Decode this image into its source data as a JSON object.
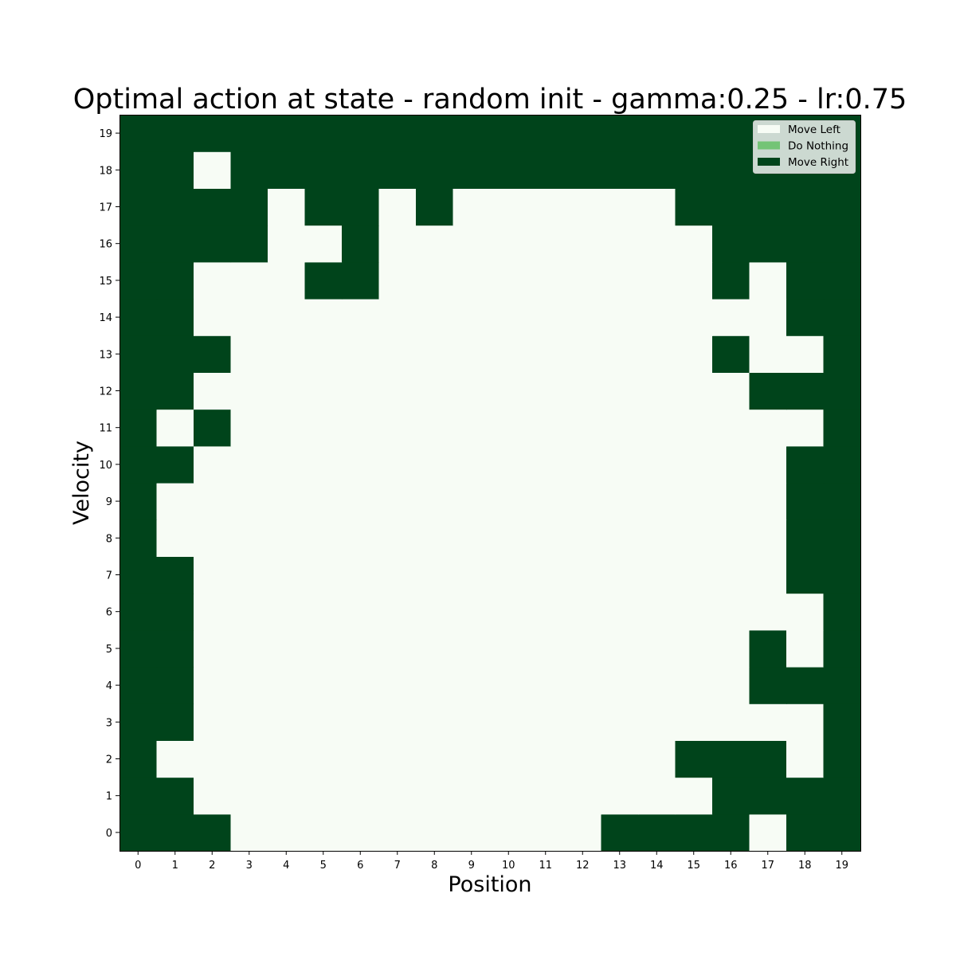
{
  "chart_data": {
    "type": "heatmap",
    "title": "Optimal action at state - random init - gamma:0.25 - lr:0.75",
    "xlabel": "Position",
    "ylabel": "Velocity",
    "x_ticks": [
      "0",
      "1",
      "2",
      "3",
      "4",
      "5",
      "6",
      "7",
      "8",
      "9",
      "10",
      "11",
      "12",
      "13",
      "14",
      "15",
      "16",
      "17",
      "18",
      "19"
    ],
    "y_ticks": [
      "0",
      "1",
      "2",
      "3",
      "4",
      "5",
      "6",
      "7",
      "8",
      "9",
      "10",
      "11",
      "12",
      "13",
      "14",
      "15",
      "16",
      "17",
      "18",
      "19"
    ],
    "grid": false,
    "legend_position": "top-right",
    "legend": [
      {
        "label": "Move Left",
        "value": 0,
        "color": "#f7fcf5"
      },
      {
        "label": "Do Nothing",
        "value": 1,
        "color": "#74c476"
      },
      {
        "label": "Move Right",
        "value": 2,
        "color": "#00441b"
      }
    ],
    "grid_rows_by_velocity": [
      [
        2,
        2,
        2,
        0,
        0,
        0,
        0,
        0,
        0,
        0,
        0,
        0,
        0,
        2,
        2,
        2,
        2,
        0,
        2,
        2
      ],
      [
        2,
        2,
        0,
        0,
        0,
        0,
        0,
        0,
        0,
        0,
        0,
        0,
        0,
        0,
        0,
        0,
        2,
        2,
        2,
        2
      ],
      [
        2,
        0,
        0,
        0,
        0,
        0,
        0,
        0,
        0,
        0,
        0,
        0,
        0,
        0,
        0,
        2,
        2,
        2,
        0,
        2
      ],
      [
        2,
        2,
        0,
        0,
        0,
        0,
        0,
        0,
        0,
        0,
        0,
        0,
        0,
        0,
        0,
        0,
        0,
        0,
        0,
        2
      ],
      [
        2,
        2,
        0,
        0,
        0,
        0,
        0,
        0,
        0,
        0,
        0,
        0,
        0,
        0,
        0,
        0,
        0,
        2,
        2,
        2
      ],
      [
        2,
        2,
        0,
        0,
        0,
        0,
        0,
        0,
        0,
        0,
        0,
        0,
        0,
        0,
        0,
        0,
        0,
        2,
        0,
        2
      ],
      [
        2,
        2,
        0,
        0,
        0,
        0,
        0,
        0,
        0,
        0,
        0,
        0,
        0,
        0,
        0,
        0,
        0,
        0,
        0,
        2
      ],
      [
        2,
        2,
        0,
        0,
        0,
        0,
        0,
        0,
        0,
        0,
        0,
        0,
        0,
        0,
        0,
        0,
        0,
        0,
        2,
        2
      ],
      [
        2,
        0,
        0,
        0,
        0,
        0,
        0,
        0,
        0,
        0,
        0,
        0,
        0,
        0,
        0,
        0,
        0,
        0,
        2,
        2
      ],
      [
        2,
        0,
        0,
        0,
        0,
        0,
        0,
        0,
        0,
        0,
        0,
        0,
        0,
        0,
        0,
        0,
        0,
        0,
        2,
        2
      ],
      [
        2,
        2,
        0,
        0,
        0,
        0,
        0,
        0,
        0,
        0,
        0,
        0,
        0,
        0,
        0,
        0,
        0,
        0,
        2,
        2
      ],
      [
        2,
        0,
        2,
        0,
        0,
        0,
        0,
        0,
        0,
        0,
        0,
        0,
        0,
        0,
        0,
        0,
        0,
        0,
        0,
        2
      ],
      [
        2,
        2,
        0,
        0,
        0,
        0,
        0,
        0,
        0,
        0,
        0,
        0,
        0,
        0,
        0,
        0,
        0,
        2,
        2,
        2
      ],
      [
        2,
        2,
        2,
        0,
        0,
        0,
        0,
        0,
        0,
        0,
        0,
        0,
        0,
        0,
        0,
        0,
        2,
        0,
        0,
        2
      ],
      [
        2,
        2,
        0,
        0,
        0,
        0,
        0,
        0,
        0,
        0,
        0,
        0,
        0,
        0,
        0,
        0,
        0,
        0,
        2,
        2
      ],
      [
        2,
        2,
        0,
        0,
        0,
        2,
        2,
        0,
        0,
        0,
        0,
        0,
        0,
        0,
        0,
        0,
        2,
        0,
        2,
        2
      ],
      [
        2,
        2,
        2,
        2,
        0,
        0,
        2,
        0,
        0,
        0,
        0,
        0,
        0,
        0,
        0,
        0,
        2,
        2,
        2,
        2
      ],
      [
        2,
        2,
        2,
        2,
        0,
        2,
        2,
        0,
        2,
        0,
        0,
        0,
        0,
        0,
        0,
        2,
        2,
        2,
        2,
        2
      ],
      [
        2,
        2,
        0,
        2,
        2,
        2,
        2,
        2,
        2,
        2,
        2,
        2,
        2,
        2,
        2,
        2,
        2,
        2,
        2,
        2
      ],
      [
        2,
        2,
        2,
        2,
        2,
        2,
        2,
        2,
        2,
        2,
        2,
        2,
        2,
        2,
        2,
        2,
        2,
        2,
        2,
        2
      ]
    ]
  }
}
